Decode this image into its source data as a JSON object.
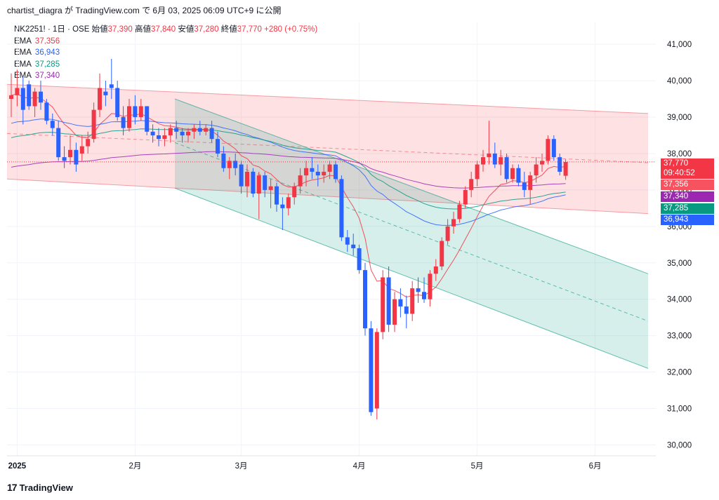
{
  "header": {
    "publish_line": "chartist_diagra が TradingView.com で 6月 03, 2025 06:09 UTC+9 に公開"
  },
  "legend": {
    "symbol_line": "NK2251! · 1日 · OSE",
    "open_label": "始値",
    "open": "37,390",
    "high_label": "高値",
    "high": "37,840",
    "low_label": "安値",
    "low": "37,280",
    "close_label": "終値",
    "close": "37,770",
    "change": "+280 (+0.75%)",
    "emas": [
      {
        "label": "EMA",
        "value": "37,356",
        "color": "#f23645"
      },
      {
        "label": "EMA",
        "value": "36,943",
        "color": "#2962ff"
      },
      {
        "label": "EMA",
        "value": "37,285",
        "color": "#089981"
      },
      {
        "label": "EMA",
        "value": "37,340",
        "color": "#9c27b0"
      }
    ]
  },
  "footer": {
    "brand": "TradingView"
  },
  "price_tags": [
    {
      "value": 37770,
      "text": "37,770",
      "color": "#f23645"
    },
    {
      "value": 37700,
      "text": "09:40:52",
      "color": "#f23645"
    },
    {
      "value": 37356,
      "text": "37,356",
      "color": "#f7525f"
    },
    {
      "value": 37340,
      "text": "37,340",
      "color": "#9c27b0"
    },
    {
      "value": 37285,
      "text": "37,285",
      "color": "#089981"
    },
    {
      "value": 36943,
      "text": "36,943",
      "color": "#2962ff"
    }
  ],
  "chart_data": {
    "type": "candlestick",
    "y_ticks": [
      30000,
      31000,
      32000,
      33000,
      34000,
      35000,
      36000,
      37000,
      38000,
      39000,
      40000,
      41000
    ],
    "y_tick_labels": [
      "30,000",
      "31,000",
      "32,000",
      "33,000",
      "34,000",
      "35,000",
      "36,000",
      "37,000",
      "38,000",
      "39,000",
      "40,000",
      "41,000"
    ],
    "ylim": [
      29700,
      41600
    ],
    "x_labels": [
      {
        "label": "2025",
        "index": 1,
        "bold": true
      },
      {
        "label": "2月",
        "index": 21
      },
      {
        "label": "3月",
        "index": 39
      },
      {
        "label": "4月",
        "index": 59
      },
      {
        "label": "5月",
        "index": 79
      },
      {
        "label": "6月",
        "index": 99
      }
    ],
    "colors": {
      "up": "#f23645",
      "down": "#2962ff"
    },
    "candles": [
      [
        39500,
        40200,
        39000,
        39600
      ],
      [
        39600,
        40300,
        39300,
        39800
      ],
      [
        39800,
        40100,
        38800,
        39200
      ],
      [
        39900,
        40000,
        39200,
        39300
      ],
      [
        39300,
        39800,
        39000,
        39700
      ],
      [
        39700,
        40000,
        39200,
        39400
      ],
      [
        39400,
        39500,
        38800,
        38900
      ],
      [
        38900,
        39100,
        38500,
        38700
      ],
      [
        38700,
        38900,
        37800,
        37900
      ],
      [
        37900,
        38200,
        37600,
        37800
      ],
      [
        37900,
        38500,
        37700,
        38100
      ],
      [
        38100,
        38300,
        37500,
        37700
      ],
      [
        38000,
        38500,
        37800,
        38200
      ],
      [
        38200,
        38600,
        38000,
        38400
      ],
      [
        38400,
        39400,
        38300,
        39200
      ],
      [
        39200,
        40200,
        39000,
        39800
      ],
      [
        39700,
        40000,
        39300,
        39600
      ],
      [
        39900,
        40600,
        39500,
        39800
      ],
      [
        39800,
        40000,
        38900,
        39000
      ],
      [
        39000,
        39300,
        38500,
        38700
      ],
      [
        38700,
        39500,
        38600,
        39300
      ],
      [
        39300,
        39600,
        38800,
        39000
      ],
      [
        39000,
        39500,
        38900,
        39300
      ],
      [
        39300,
        39300,
        38500,
        38600
      ],
      [
        38600,
        38800,
        38300,
        38500
      ],
      [
        38500,
        38700,
        38200,
        38400
      ],
      [
        38400,
        38700,
        38200,
        38500
      ],
      [
        38500,
        38800,
        38300,
        38700
      ],
      [
        38700,
        38900,
        38400,
        38600
      ],
      [
        38600,
        38700,
        38300,
        38500
      ],
      [
        38500,
        38700,
        38300,
        38600
      ],
      [
        38600,
        38800,
        38400,
        38700
      ],
      [
        38700,
        38900,
        38500,
        38600
      ],
      [
        38600,
        38800,
        38500,
        38700
      ],
      [
        38700,
        38900,
        38300,
        38400
      ],
      [
        38400,
        38600,
        37900,
        38000
      ],
      [
        38000,
        38200,
        37500,
        37600
      ],
      [
        37600,
        37900,
        37300,
        37800
      ],
      [
        37800,
        38000,
        37400,
        37600
      ],
      [
        37700,
        37800,
        36900,
        37100
      ],
      [
        37100,
        37700,
        36800,
        37500
      ],
      [
        37500,
        37600,
        36800,
        36900
      ],
      [
        36900,
        37500,
        36200,
        37400
      ],
      [
        37400,
        37500,
        36800,
        37000
      ],
      [
        37000,
        37300,
        36500,
        37100
      ],
      [
        37100,
        37200,
        36400,
        36600
      ],
      [
        36600,
        36800,
        35900,
        36500
      ],
      [
        36500,
        36900,
        36300,
        36800
      ],
      [
        36800,
        37200,
        36600,
        37100
      ],
      [
        37100,
        37600,
        36900,
        37400
      ],
      [
        37400,
        37800,
        37100,
        37600
      ],
      [
        37600,
        37900,
        37300,
        37500
      ],
      [
        37500,
        37700,
        37100,
        37400
      ],
      [
        37400,
        37700,
        37200,
        37500
      ],
      [
        37500,
        37800,
        37300,
        37700
      ],
      [
        37700,
        37800,
        37200,
        37300
      ],
      [
        37300,
        37400,
        35600,
        35700
      ],
      [
        35700,
        35900,
        35300,
        35500
      ],
      [
        35500,
        35800,
        35200,
        35400
      ],
      [
        35400,
        35500,
        34700,
        34800
      ],
      [
        34800,
        35000,
        33000,
        33200
      ],
      [
        33200,
        33400,
        30800,
        30900
      ],
      [
        31000,
        33200,
        30700,
        33100
      ],
      [
        33100,
        34800,
        32900,
        34600
      ],
      [
        34600,
        34900,
        33100,
        33300
      ],
      [
        33300,
        34200,
        33100,
        34000
      ],
      [
        34000,
        34300,
        33500,
        33800
      ],
      [
        33800,
        34100,
        33200,
        33600
      ],
      [
        33600,
        34500,
        33400,
        34300
      ],
      [
        34300,
        34600,
        33900,
        34200
      ],
      [
        34200,
        34600,
        33900,
        34000
      ],
      [
        34000,
        34800,
        33800,
        34700
      ],
      [
        34700,
        35100,
        34500,
        34900
      ],
      [
        34900,
        35700,
        34800,
        35600
      ],
      [
        35600,
        36200,
        35500,
        36000
      ],
      [
        36000,
        36400,
        35800,
        36200
      ],
      [
        36200,
        36700,
        36100,
        36600
      ],
      [
        36600,
        37100,
        36500,
        37000
      ],
      [
        37000,
        37500,
        36800,
        37300
      ],
      [
        37300,
        37800,
        37100,
        37700
      ],
      [
        37700,
        38100,
        37500,
        37900
      ],
      [
        37900,
        38900,
        37700,
        38000
      ],
      [
        38000,
        38300,
        37600,
        37700
      ],
      [
        37700,
        38100,
        37400,
        37900
      ],
      [
        37900,
        38000,
        37200,
        37300
      ],
      [
        37300,
        37700,
        37200,
        37600
      ],
      [
        37600,
        37700,
        37100,
        37200
      ],
      [
        37200,
        37500,
        36800,
        37000
      ],
      [
        37000,
        37500,
        36600,
        37400
      ],
      [
        37400,
        37900,
        37200,
        37700
      ],
      [
        37700,
        38000,
        37500,
        37800
      ],
      [
        37800,
        38500,
        37700,
        38400
      ],
      [
        38400,
        38500,
        37800,
        37900
      ],
      [
        37900,
        38000,
        37400,
        37500
      ],
      [
        37390,
        37840,
        37280,
        37770
      ]
    ]
  }
}
